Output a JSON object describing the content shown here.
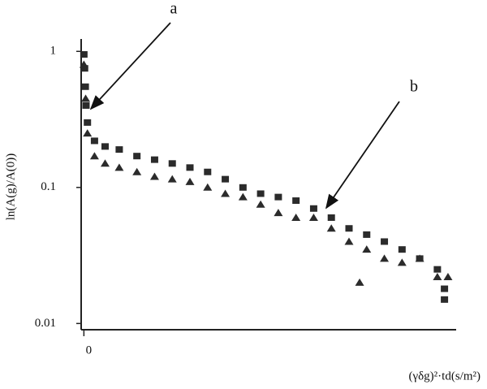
{
  "chart_data": {
    "type": "scatter",
    "ylabel": "ln(A(g)/A(0))",
    "xlabel": "(γδg)²·td(s/m²)",
    "log_y": true,
    "xlim": [
      -0.1,
      10.6
    ],
    "ylim": [
      0.009,
      1.2
    ],
    "xticks": [
      0
    ],
    "yticks": [
      1,
      0.1,
      0.01
    ],
    "annotations": [
      {
        "text": "a"
      },
      {
        "text": "b"
      }
    ],
    "series": [
      {
        "marker": "square",
        "color": "#2b2b2b",
        "x": [
          0,
          0.02,
          0.04,
          0.06,
          0.1,
          0.3,
          0.6,
          1.0,
          1.5,
          2.0,
          2.5,
          3.0,
          3.5,
          4.0,
          4.5,
          5.0,
          5.5,
          6.0,
          6.5,
          7.0,
          7.5,
          8.0,
          8.5,
          9.0,
          9.5,
          10.0,
          10.2,
          10.2
        ],
        "values": [
          0.95,
          0.75,
          0.55,
          0.4,
          0.3,
          0.22,
          0.2,
          0.19,
          0.17,
          0.16,
          0.15,
          0.14,
          0.13,
          0.115,
          0.1,
          0.09,
          0.085,
          0.08,
          0.07,
          0.06,
          0.05,
          0.045,
          0.04,
          0.035,
          0.03,
          0.025,
          0.018,
          0.015
        ]
      },
      {
        "marker": "triangle",
        "color": "#2b2b2b",
        "x": [
          0,
          0.05,
          0.1,
          0.3,
          0.6,
          1.0,
          1.5,
          2.0,
          2.5,
          3.0,
          3.5,
          4.0,
          4.5,
          5.0,
          5.5,
          6.0,
          6.5,
          7.0,
          7.5,
          7.8,
          8.0,
          8.5,
          9.0,
          9.5,
          10.0,
          10.3
        ],
        "values": [
          0.8,
          0.45,
          0.25,
          0.17,
          0.15,
          0.14,
          0.13,
          0.12,
          0.115,
          0.11,
          0.1,
          0.09,
          0.085,
          0.075,
          0.065,
          0.06,
          0.06,
          0.05,
          0.04,
          0.02,
          0.035,
          0.03,
          0.028,
          0.03,
          0.022,
          0.022
        ]
      }
    ]
  }
}
